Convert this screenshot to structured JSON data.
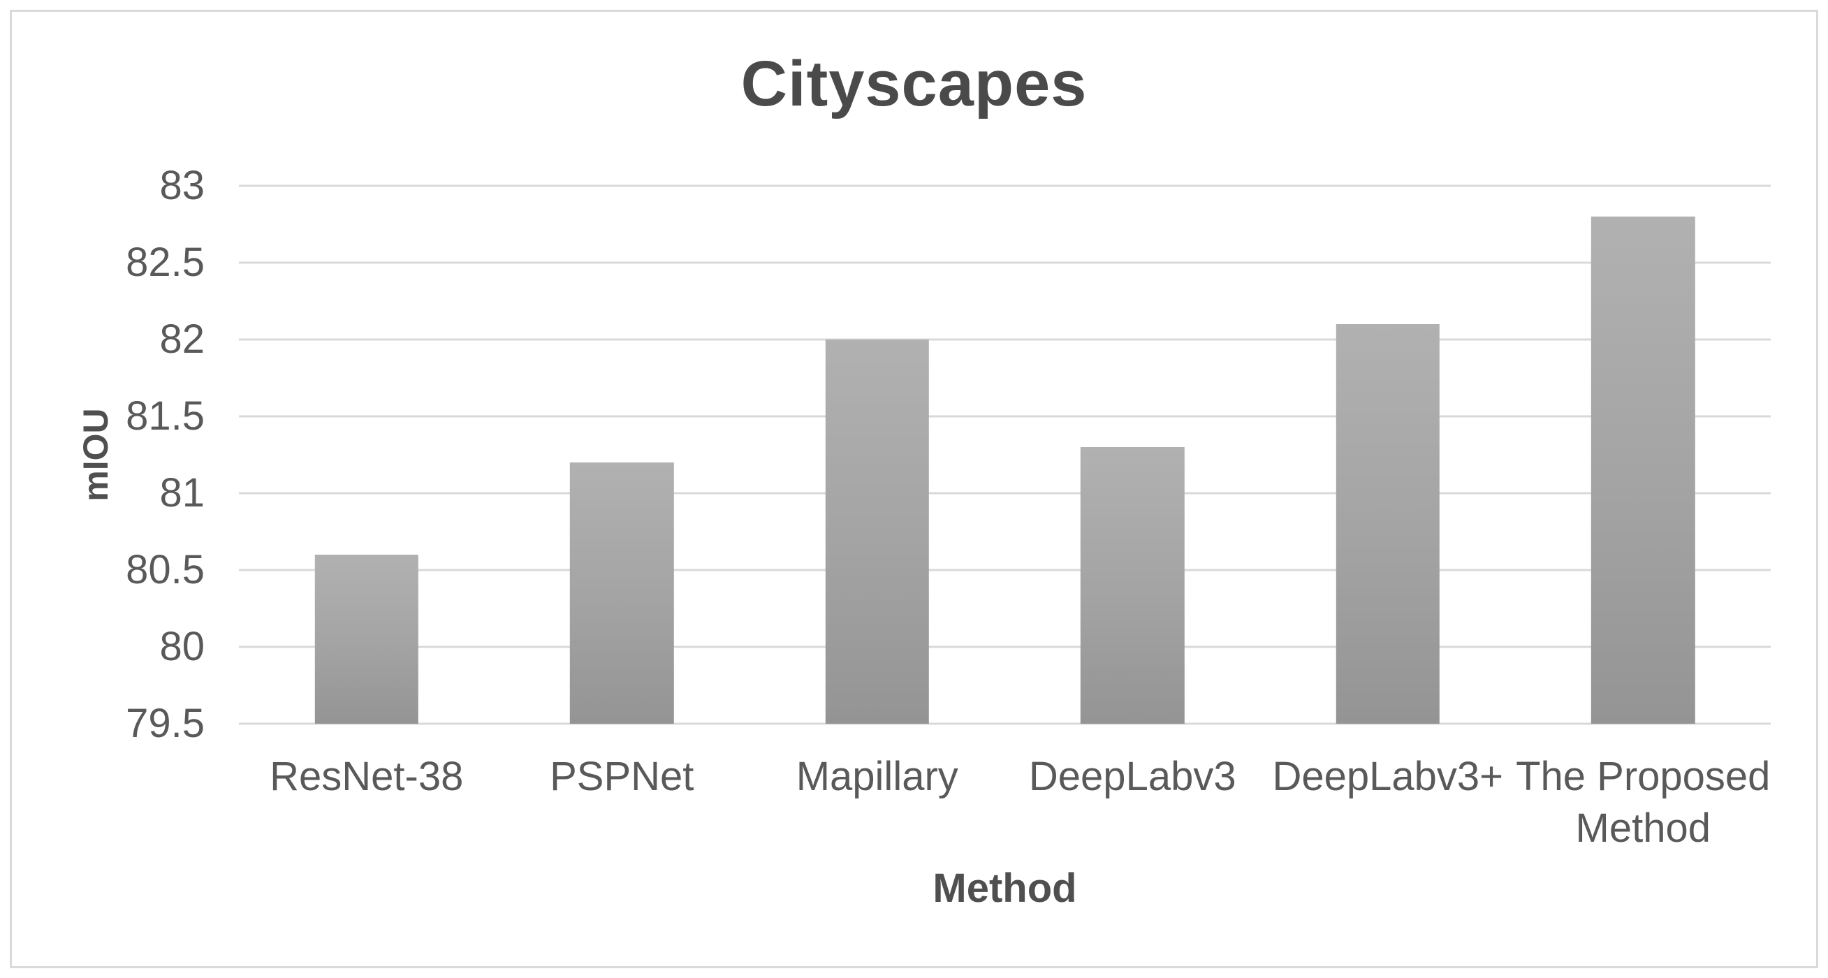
{
  "figure": {
    "title": "Cityscapes",
    "x_axis_title": "Method",
    "y_axis_title": "mIOU"
  },
  "chart_data": {
    "type": "bar",
    "title": "Cityscapes",
    "xlabel": "Method",
    "ylabel": "mIOU",
    "categories": [
      "ResNet-38",
      "PSPNet",
      "Mapillary",
      "DeepLabv3",
      "DeepLabv3+",
      "The Proposed Method"
    ],
    "values": [
      80.6,
      81.2,
      82.0,
      81.3,
      82.1,
      82.8
    ],
    "ylim": [
      79.5,
      83
    ],
    "yticks": [
      83,
      82.5,
      82,
      81.5,
      81,
      80.5,
      80,
      79.5
    ],
    "ytick_step": 0.5,
    "grid": "horizontal-only",
    "legend": "none",
    "colors": {
      "bar_top": "#b1b1b1",
      "bar_bottom": "#949494",
      "gridline": "#d9d9d9",
      "text": "#595959",
      "title_text": "#4a4a4a",
      "frame_border": "#dadada",
      "background": "#ffffff"
    }
  }
}
